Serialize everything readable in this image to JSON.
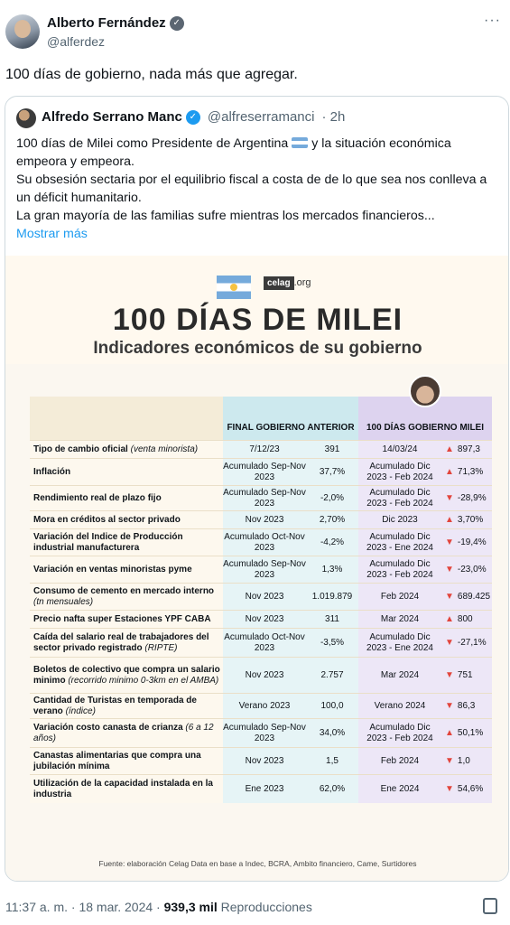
{
  "tweet": {
    "author_name": "Alberto Fernández",
    "author_handle": "@alferdez",
    "text": "100 días de gobierno, nada más que agregar.",
    "more_label": "···",
    "time": "11:37 a. m. · 18 mar. 2024 ·",
    "views": "939,3 mil",
    "views_label": "Reproducciones"
  },
  "quote": {
    "author_name": "Alfredo Serrano Manc",
    "author_handle": "@alfreserramanci",
    "age": "· 2h",
    "line1": "100 días de Milei como Presidente de Argentina",
    "line1b": "y la situación económica empeora y empeora.",
    "line2": "Su obsesión sectaria por el equilibrio fiscal a costa de de lo que sea nos conlleva a un déficit humanitario.",
    "line3": "La gran mayoría de las familias sufre mientras los mercados financieros...",
    "show_more": "Mostrar más"
  },
  "infographic": {
    "brand": "celag",
    "brand_suffix": ".org",
    "title": "100 DÍAS DE MILEI",
    "subtitle": "Indicadores económicos de su gobierno",
    "col_prev": "FINAL GOBIERNO ANTERIOR",
    "col_milei": "100 DÍAS GOBIERNO MILEI",
    "source": "Fuente: elaboración Celag Data en base a Indec, BCRA, Ambito financiero, Came, Surtidores",
    "rows": [
      {
        "label": "Tipo de cambio oficial",
        "note": "(venta minorista)",
        "prev_period": "7/12/23",
        "prev_value": "391",
        "milei_period": "14/03/24",
        "direction": "up",
        "milei_value": "897,3"
      },
      {
        "label": "Inflación",
        "note": "",
        "prev_period": "Acumulado Sep-Nov 2023",
        "prev_value": "37,7%",
        "milei_period": "Acumulado Dic 2023 - Feb 2024",
        "direction": "up",
        "milei_value": "71,3%"
      },
      {
        "label": "Rendimiento real de plazo fijo",
        "note": "",
        "prev_period": "Acumulado Sep-Nov 2023",
        "prev_value": "-2,0%",
        "milei_period": "Acumulado Dic 2023 - Feb 2024",
        "direction": "down",
        "milei_value": "-28,9%"
      },
      {
        "label": "Mora en créditos al sector privado",
        "note": "",
        "prev_period": "Nov 2023",
        "prev_value": "2,70%",
        "milei_period": "Dic 2023",
        "direction": "up",
        "milei_value": "3,70%"
      },
      {
        "label": "Variación del Indice de Producción industrial manufacturera",
        "note": "",
        "prev_period": "Acumulado Oct-Nov 2023",
        "prev_value": "-4,2%",
        "milei_period": "Acumulado Dic 2023 - Ene 2024",
        "direction": "down",
        "milei_value": "-19,4%"
      },
      {
        "label": "Variación en ventas minoristas pyme",
        "note": "",
        "prev_period": "Acumulado Sep-Nov 2023",
        "prev_value": "1,3%",
        "milei_period": "Acumulado Dic 2023 - Feb 2024",
        "direction": "down",
        "milei_value": "-23,0%"
      },
      {
        "label": "Consumo de cemento en mercado interno",
        "note": "(tn mensuales)",
        "prev_period": "Nov 2023",
        "prev_value": "1.019.879",
        "milei_period": "Feb 2024",
        "direction": "down",
        "milei_value": "689.425"
      },
      {
        "label": "Precio nafta super Estaciones YPF CABA",
        "note": "",
        "prev_period": "Nov 2023",
        "prev_value": "311",
        "milei_period": "Mar 2024",
        "direction": "up",
        "milei_value": "800"
      },
      {
        "label": "Caída del salario real de trabajadores del sector privado registrado",
        "note": "(RIPTE)",
        "prev_period": "Acumulado Oct-Nov 2023",
        "prev_value": "-3,5%",
        "milei_period": "Acumulado Dic 2023 - Ene 2024",
        "direction": "down",
        "milei_value": "-27,1%"
      },
      {
        "label": "Boletos de colectivo que compra un salario minimo",
        "note": "(recorrido minimo 0-3km en el AMBA)",
        "prev_period": "Nov 2023",
        "prev_value": "2.757",
        "milei_period": "Mar 2024",
        "direction": "down",
        "milei_value": "751"
      },
      {
        "label": "Cantidad de Turistas en temporada de verano",
        "note": "(índice)",
        "prev_period": "Verano 2023",
        "prev_value": "100,0",
        "milei_period": "Verano 2024",
        "direction": "down",
        "milei_value": "86,3"
      },
      {
        "label": "Variación costo canasta de crianza",
        "note": "(6 a 12 años)",
        "prev_period": "Acumulado Sep-Nov 2023",
        "prev_value": "34,0%",
        "milei_period": "Acumulado Dic 2023 - Feb 2024",
        "direction": "up",
        "milei_value": "50,1%"
      },
      {
        "label": "Canastas alimentarias que compra una jubilación mínima",
        "note": "",
        "prev_period": "Nov 2023",
        "prev_value": "1,5",
        "milei_period": "Feb 2024",
        "direction": "down",
        "milei_value": "1,0"
      },
      {
        "label": "Utilización de la capacidad instalada en la industria",
        "note": "",
        "prev_period": "Ene 2023",
        "prev_value": "62,0%",
        "milei_period": "Ene 2024",
        "direction": "down",
        "milei_value": "54,6%"
      }
    ]
  }
}
